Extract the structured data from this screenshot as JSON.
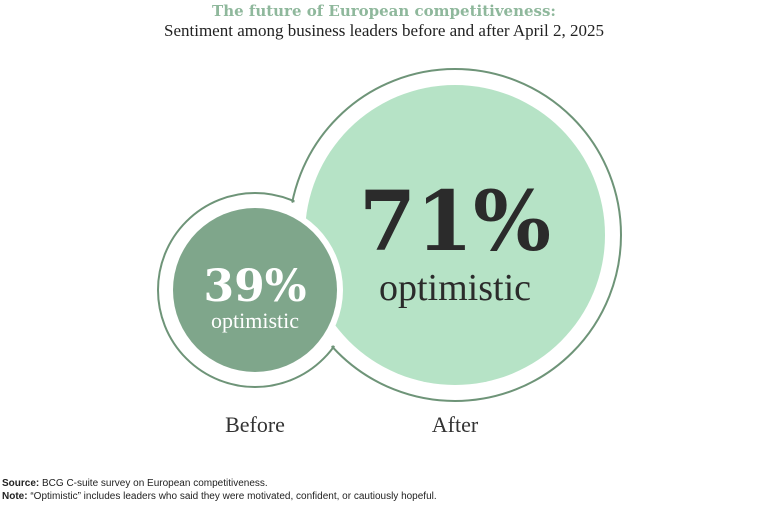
{
  "title": "The future of European competitiveness:",
  "subtitle": "Sentiment among business leaders before and after April 2, 2025",
  "chart_data": {
    "type": "bubble",
    "series": [
      {
        "name": "Before",
        "value": 39,
        "value_label": "39%",
        "sublabel": "optimistic",
        "color": "#7fa68b"
      },
      {
        "name": "After",
        "value": 71,
        "value_label": "71%",
        "sublabel": "optimistic",
        "color": "#b6e3c6"
      }
    ],
    "outline_color": "#6e9478"
  },
  "footer": {
    "source_label": "Source:",
    "source_text": " BCG C-suite survey on European competitiveness.",
    "note_label": "Note:",
    "note_text": " “Optimistic” includes leaders who said they were motivated, confident, or cautiously hopeful."
  }
}
